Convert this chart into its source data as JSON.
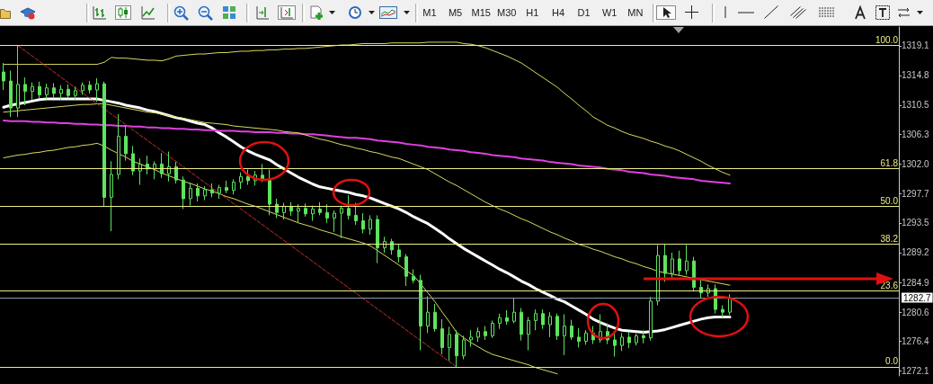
{
  "chart_data": {
    "type": "candlestick",
    "color": "#5ee35e",
    "categories": [
      null,
      null,
      null,
      null,
      null,
      null,
      null,
      null,
      null,
      null,
      null,
      null,
      null,
      null,
      null,
      null,
      null,
      null,
      null,
      null,
      null,
      null,
      null,
      null,
      null,
      null,
      null,
      null,
      null,
      null,
      null,
      null,
      null,
      null,
      null,
      null,
      null,
      null,
      null,
      null,
      null,
      null,
      null,
      null,
      null,
      null,
      null,
      null,
      null,
      null,
      null,
      null,
      null,
      null,
      null,
      null,
      null,
      null,
      null,
      null,
      null,
      null,
      null,
      null,
      null,
      null,
      null,
      null,
      null,
      null,
      null,
      null,
      null,
      null,
      null,
      null,
      null,
      null,
      null,
      null,
      null,
      null,
      null,
      null,
      null,
      null,
      null,
      null,
      null,
      null,
      null,
      null,
      null,
      null,
      null,
      null,
      null,
      null,
      null,
      null,
      null,
      null,
      null,
      null,
      null,
      null,
      null,
      null,
      null,
      null,
      null,
      null,
      null,
      null,
      null,
      null,
      null,
      null,
      null,
      null,
      null,
      null,
      null,
      null,
      null
    ],
    "ohlc": [
      [
        1315.3,
        1316.6,
        1312.7,
        1314.0
      ],
      [
        1314.0,
        1315.5,
        1308.8,
        1310.1
      ],
      [
        1310.1,
        1319.1,
        1308.8,
        1313.5
      ],
      [
        1313.5,
        1314.5,
        1310.5,
        1312.5
      ],
      [
        1312.5,
        1313.8,
        1311.3,
        1313.2
      ],
      [
        1313.2,
        1313.9,
        1311.5,
        1312.0
      ],
      [
        1312.0,
        1313.6,
        1311.4,
        1313.0
      ],
      [
        1313.0,
        1313.7,
        1311.6,
        1312.2
      ],
      [
        1312.2,
        1313.4,
        1311.3,
        1312.8
      ],
      [
        1312.8,
        1313.5,
        1311.5,
        1311.9
      ],
      [
        1311.9,
        1313.2,
        1311.3,
        1312.6
      ],
      [
        1312.6,
        1313.8,
        1312.0,
        1313.4
      ],
      [
        1313.4,
        1314.0,
        1312.2,
        1312.7
      ],
      [
        1312.7,
        1314.4,
        1311.0,
        1313.6
      ],
      [
        1313.6,
        1313.9,
        1295.9,
        1297.2
      ],
      [
        1297.2,
        1302.4,
        1292.3,
        1300.5
      ],
      [
        1300.5,
        1309.2,
        1299.8,
        1306.0
      ],
      [
        1306.0,
        1307.5,
        1302.5,
        1303.5
      ],
      [
        1303.5,
        1304.6,
        1300.4,
        1301.0
      ],
      [
        1301.0,
        1302.8,
        1299.0,
        1302.0
      ],
      [
        1302.0,
        1303.2,
        1300.5,
        1301.3
      ],
      [
        1301.3,
        1302.4,
        1299.8,
        1302.0
      ],
      [
        1302.0,
        1303.6,
        1300.0,
        1300.6
      ],
      [
        1300.6,
        1303.8,
        1299.5,
        1301.6
      ],
      [
        1301.6,
        1302.3,
        1299.2,
        1299.7
      ],
      [
        1299.7,
        1300.2,
        1295.5,
        1297.0
      ],
      [
        1297.0,
        1299.3,
        1296.0,
        1298.5
      ],
      [
        1298.5,
        1299.2,
        1296.6,
        1297.4
      ],
      [
        1297.4,
        1298.8,
        1296.8,
        1298.3
      ],
      [
        1298.3,
        1299.2,
        1297.2,
        1297.8
      ],
      [
        1297.8,
        1299.0,
        1297.0,
        1298.6
      ],
      [
        1298.6,
        1299.6,
        1297.8,
        1298.2
      ],
      [
        1298.2,
        1299.8,
        1297.6,
        1299.4
      ],
      [
        1299.4,
        1300.8,
        1298.4,
        1300.2
      ],
      [
        1300.2,
        1301.2,
        1299.0,
        1299.6
      ],
      [
        1299.6,
        1301.0,
        1298.9,
        1300.4
      ],
      [
        1300.4,
        1302.0,
        1299.4,
        1299.8
      ],
      [
        1299.8,
        1301.2,
        1294.6,
        1296.2
      ],
      [
        1296.2,
        1297.0,
        1294.2,
        1295.0
      ],
      [
        1295.0,
        1296.4,
        1294.0,
        1295.9
      ],
      [
        1295.9,
        1296.5,
        1294.5,
        1295.2
      ],
      [
        1295.2,
        1296.2,
        1293.6,
        1295.6
      ],
      [
        1295.6,
        1296.3,
        1294.4,
        1294.8
      ],
      [
        1294.8,
        1296.0,
        1293.8,
        1295.5
      ],
      [
        1295.5,
        1296.5,
        1294.6,
        1295.0
      ],
      [
        1295.0,
        1296.2,
        1293.5,
        1294.2
      ],
      [
        1294.2,
        1295.3,
        1292.2,
        1294.9
      ],
      [
        1294.9,
        1296.0,
        1291.3,
        1295.6
      ],
      [
        1295.6,
        1297.5,
        1294.0,
        1294.6
      ],
      [
        1294.6,
        1296.4,
        1293.2,
        1293.8
      ],
      [
        1293.8,
        1294.9,
        1292.0,
        1292.6
      ],
      [
        1292.6,
        1294.6,
        1291.8,
        1294.0
      ],
      [
        1294.0,
        1294.6,
        1287.7,
        1289.9
      ],
      [
        1289.9,
        1291.5,
        1289.2,
        1290.8
      ],
      [
        1290.8,
        1291.2,
        1288.9,
        1289.6
      ],
      [
        1289.6,
        1290.5,
        1287.8,
        1288.6
      ],
      [
        1288.6,
        1289.0,
        1284.4,
        1285.8
      ],
      [
        1285.8,
        1286.8,
        1284.8,
        1285.2
      ],
      [
        1285.2,
        1286.0,
        1275.1,
        1278.6
      ],
      [
        1278.6,
        1282.9,
        1277.6,
        1280.6
      ],
      [
        1280.6,
        1281.8,
        1277.8,
        1278.2
      ],
      [
        1278.2,
        1279.6,
        1274.5,
        1275.5
      ],
      [
        1275.5,
        1278.5,
        1273.6,
        1277.4
      ],
      [
        1277.4,
        1278.0,
        1272.7,
        1274.3
      ],
      [
        1274.3,
        1277.2,
        1273.8,
        1276.6
      ],
      [
        1276.6,
        1278.0,
        1275.6,
        1277.0
      ],
      [
        1277.0,
        1278.4,
        1276.3,
        1277.8
      ],
      [
        1277.8,
        1278.6,
        1276.6,
        1277.2
      ],
      [
        1277.2,
        1279.4,
        1276.9,
        1279.0
      ],
      [
        1279.0,
        1280.4,
        1278.2,
        1279.8
      ],
      [
        1279.8,
        1280.9,
        1278.8,
        1279.3
      ],
      [
        1279.3,
        1282.6,
        1279.0,
        1280.6
      ],
      [
        1280.6,
        1281.2,
        1276.5,
        1277.4
      ],
      [
        1277.4,
        1279.9,
        1275.1,
        1279.4
      ],
      [
        1279.4,
        1281.0,
        1278.0,
        1280.4
      ],
      [
        1280.4,
        1281.0,
        1278.2,
        1278.8
      ],
      [
        1278.8,
        1280.6,
        1277.0,
        1280.0
      ],
      [
        1280.0,
        1280.4,
        1276.6,
        1277.2
      ],
      [
        1277.2,
        1280.3,
        1274.4,
        1278.6
      ],
      [
        1278.6,
        1279.5,
        1276.6,
        1277.0
      ],
      [
        1277.0,
        1278.3,
        1275.5,
        1276.4
      ],
      [
        1276.4,
        1278.0,
        1275.9,
        1277.6
      ],
      [
        1277.6,
        1278.6,
        1276.0,
        1276.6
      ],
      [
        1276.6,
        1280.3,
        1276.2,
        1277.8
      ],
      [
        1277.8,
        1279.0,
        1276.0,
        1276.6
      ],
      [
        1276.6,
        1277.6,
        1274.2,
        1275.8
      ],
      [
        1275.8,
        1277.6,
        1275.0,
        1277.0
      ],
      [
        1277.0,
        1277.8,
        1275.4,
        1276.2
      ],
      [
        1276.2,
        1277.5,
        1275.8,
        1277.2
      ],
      [
        1277.2,
        1278.0,
        1276.1,
        1276.9
      ],
      [
        1276.9,
        1282.8,
        1276.5,
        1282.2
      ],
      [
        1282.2,
        1290.3,
        1281.6,
        1288.8
      ],
      [
        1288.8,
        1290.4,
        1285.0,
        1286.2
      ],
      [
        1286.2,
        1289.2,
        1285.6,
        1288.3
      ],
      [
        1288.3,
        1289.5,
        1285.9,
        1286.6
      ],
      [
        1286.6,
        1290.3,
        1286.0,
        1288.0
      ],
      [
        1288.0,
        1288.6,
        1283.6,
        1284.2
      ],
      [
        1284.2,
        1285.3,
        1282.6,
        1283.4
      ],
      [
        1283.4,
        1284.6,
        1282.8,
        1284.0
      ],
      [
        1284.0,
        1284.6,
        1280.4,
        1281.0
      ],
      [
        1281.0,
        1281.6,
        1279.8,
        1280.6
      ],
      [
        1280.6,
        1283.2,
        1280.2,
        1282.7
      ],
      null,
      null,
      null,
      null,
      null,
      null,
      null,
      null,
      null,
      null,
      null,
      null,
      null,
      null,
      null,
      null,
      null,
      null,
      null,
      null,
      null,
      null,
      null
    ],
    "series": [
      {
        "type": "line",
        "color": "#ffffff",
        "values": [
          1310.2,
          1310.5,
          1310.7,
          1310.9,
          1311.1,
          1311.3,
          1311.4,
          1311.4,
          1311.4,
          1311.4,
          1311.4,
          1311.4,
          1311.4,
          1311.4,
          1311.2,
          1311.0,
          1310.8,
          1310.5,
          1310.3,
          1310.1,
          1309.8,
          1309.6,
          1309.3,
          1309.0,
          1308.7,
          1308.5,
          1308.2,
          1307.9,
          1307.7,
          1307.2,
          1306.5,
          1305.9,
          1305.2,
          1304.5,
          1303.9,
          1303.4,
          1303.0,
          1302.6,
          1301.9,
          1301.3,
          1300.7,
          1300.1,
          1299.6,
          1299.1,
          1298.7,
          1298.5,
          1298.3,
          1298.1,
          1297.9,
          1297.6,
          1297.4,
          1297.1,
          1296.7,
          1296.3,
          1295.9,
          1295.5,
          1295.0,
          1294.4,
          1293.9,
          1293.4,
          1292.7,
          1292.0,
          1291.2,
          1290.5,
          1289.8,
          1289.2,
          1288.6,
          1288.0,
          1287.4,
          1286.8,
          1286.3,
          1285.7,
          1285.1,
          1284.6,
          1284.0,
          1283.5,
          1283.0,
          1282.5,
          1282.1,
          1281.5,
          1280.9,
          1280.3,
          1279.6,
          1279.1,
          1278.7,
          1278.3,
          1278.0,
          1277.9,
          1277.8,
          1277.7,
          1277.8,
          1277.9,
          1278.1,
          1278.4,
          1278.7,
          1279.0,
          1279.3,
          1279.6,
          1279.8,
          1279.9,
          1279.9,
          1279.9,
          null,
          null,
          null,
          null,
          null,
          null,
          null,
          null,
          null,
          null,
          null,
          null,
          null,
          null,
          null,
          null,
          null,
          null,
          null,
          null,
          null,
          null,
          null
        ]
      },
      {
        "type": "line",
        "color": "#e040e0",
        "values": [
          1308.3,
          1308.2,
          1308.2,
          1308.2,
          1308.1,
          1308.1,
          1308.0,
          1308.0,
          1307.9,
          1307.9,
          1307.8,
          1307.8,
          1307.7,
          1307.7,
          1307.6,
          1307.6,
          1307.5,
          1307.5,
          1307.4,
          1307.4,
          1307.3,
          1307.3,
          1307.2,
          1307.2,
          1307.1,
          1307.1,
          1307.0,
          1307.0,
          1306.9,
          1306.9,
          1306.8,
          1306.8,
          1306.8,
          1306.7,
          1306.7,
          1306.6,
          1306.6,
          1306.6,
          1306.5,
          1306.5,
          1306.4,
          1306.4,
          1306.3,
          1306.3,
          1306.2,
          1306.1,
          1306.0,
          1305.9,
          1305.8,
          1305.8,
          1305.7,
          1305.6,
          1305.4,
          1305.3,
          1305.2,
          1305.1,
          1304.9,
          1304.8,
          1304.7,
          1304.5,
          1304.4,
          1304.3,
          1304.1,
          1304.0,
          1303.9,
          1303.7,
          1303.6,
          1303.5,
          1303.3,
          1303.2,
          1303.1,
          1303.0,
          1302.8,
          1302.7,
          1302.6,
          1302.5,
          1302.3,
          1302.2,
          1302.1,
          1302.0,
          1301.8,
          1301.7,
          1301.6,
          1301.5,
          1301.3,
          1301.2,
          1301.1,
          1300.9,
          1300.8,
          1300.7,
          1300.5,
          1300.4,
          1300.3,
          1300.1,
          1300.0,
          1299.9,
          1299.8,
          1299.6,
          1299.5,
          1299.4,
          1299.3,
          1299.2,
          null,
          null,
          null,
          null,
          null,
          null,
          null,
          null,
          null,
          null,
          null,
          null,
          null,
          null,
          null,
          null,
          null,
          null,
          null,
          null,
          null,
          null,
          null
        ]
      },
      {
        "type": "line",
        "color": "#d8d860",
        "values": [
          1316.4,
          1316.4,
          1316.4,
          1316.4,
          1316.4,
          1316.4,
          1316.4,
          1316.4,
          1316.4,
          1316.4,
          1316.4,
          1316.4,
          1316.4,
          1316.4,
          1316.7,
          1317.4,
          1317.3,
          1317.3,
          1317.2,
          1317.1,
          1317.0,
          1317.0,
          1316.9,
          1317.2,
          1317.6,
          1317.7,
          1317.8,
          1317.9,
          1317.9,
          1318.0,
          1318.1,
          1318.1,
          1318.2,
          1318.3,
          1318.3,
          1318.4,
          1318.4,
          1318.5,
          1318.5,
          1318.6,
          1318.6,
          1318.7,
          1318.7,
          1318.8,
          1318.9,
          1319.0,
          1319.1,
          1319.2,
          1319.2,
          1319.3,
          1319.4,
          1319.4,
          1319.4,
          1319.4,
          1319.5,
          1319.5,
          1319.5,
          1319.5,
          1319.5,
          1319.6,
          1319.6,
          1319.6,
          1319.6,
          1319.6,
          1319.4,
          1319.3,
          1319.1,
          1318.8,
          1318.4,
          1318.0,
          1317.6,
          1317.1,
          1316.6,
          1315.9,
          1315.2,
          1314.5,
          1313.8,
          1313.1,
          1312.2,
          1311.4,
          1310.5,
          1309.7,
          1308.8,
          1308.2,
          1307.6,
          1307.2,
          1306.7,
          1306.3,
          1306.0,
          1305.7,
          1305.3,
          1305.0,
          1304.6,
          1304.3,
          1303.9,
          1303.4,
          1302.9,
          1302.4,
          1301.8,
          1301.3,
          1300.8,
          1300.4,
          null,
          null,
          null,
          null,
          null,
          null,
          null,
          null,
          null,
          null,
          null,
          null,
          null,
          null,
          null,
          null,
          null,
          null,
          null,
          null,
          null,
          null,
          null
        ]
      },
      {
        "type": "line",
        "color": "#d8d860",
        "values": [
          1309.5,
          1309.6,
          1309.7,
          1309.8,
          1309.9,
          1310.0,
          1310.1,
          1310.2,
          1310.3,
          1310.4,
          1310.5,
          1310.6,
          1310.6,
          1310.7,
          1310.7,
          1310.5,
          1310.3,
          1310.1,
          1309.9,
          1309.7,
          1309.5,
          1309.4,
          1309.2,
          1309.0,
          1308.8,
          1308.6,
          1308.4,
          1308.2,
          1308.0,
          1307.9,
          1307.8,
          1307.7,
          1307.5,
          1307.4,
          1307.3,
          1307.2,
          1307.1,
          1307.0,
          1306.9,
          1306.7,
          1306.6,
          1306.5,
          1306.2,
          1305.9,
          1305.6,
          1305.4,
          1305.1,
          1304.8,
          1304.6,
          1304.3,
          1304.1,
          1303.8,
          1303.6,
          1303.3,
          1303.0,
          1302.8,
          1302.4,
          1302.0,
          1301.6,
          1301.2,
          1300.6,
          1300.0,
          1299.4,
          1298.9,
          1298.3,
          1297.7,
          1297.1,
          1296.5,
          1296.0,
          1295.5,
          1295.1,
          1294.6,
          1294.1,
          1293.7,
          1293.2,
          1292.7,
          1292.2,
          1291.8,
          1291.3,
          1290.9,
          1290.4,
          1290.1,
          1289.7,
          1289.4,
          1289.0,
          1288.6,
          1288.3,
          1287.9,
          1287.6,
          1287.2,
          1286.9,
          1286.5,
          1286.3,
          1286.1,
          1285.9,
          1285.7,
          1285.5,
          1285.3,
          1285.1,
          1284.9,
          1284.7,
          1284.5,
          null,
          null,
          null,
          null,
          null,
          null,
          null,
          null,
          null,
          null,
          null,
          null,
          null,
          null,
          null,
          null,
          null,
          null,
          null,
          null,
          null,
          null,
          null
        ]
      },
      {
        "type": "line",
        "color": "#d8d860",
        "values": [
          1302.9,
          1303.1,
          1303.3,
          1303.4,
          1303.6,
          1303.7,
          1303.9,
          1304.0,
          1304.2,
          1304.4,
          1304.5,
          1304.7,
          1304.8,
          1305.0,
          1304.6,
          1304.0,
          1303.5,
          1303.0,
          1302.4,
          1302.0,
          1301.6,
          1301.2,
          1300.7,
          1300.3,
          1299.9,
          1299.5,
          1299.2,
          1298.8,
          1298.4,
          1298.1,
          1297.7,
          1297.3,
          1297.0,
          1296.6,
          1296.2,
          1295.9,
          1295.5,
          1295.1,
          1294.7,
          1294.3,
          1293.9,
          1293.5,
          1293.2,
          1292.9,
          1292.5,
          1292.2,
          1291.9,
          1291.5,
          1291.2,
          1290.9,
          1290.6,
          1290.2,
          1289.5,
          1288.8,
          1288.1,
          1287.4,
          1286.6,
          1285.9,
          1284.7,
          1283.4,
          1282.1,
          1280.6,
          1279.2,
          1277.7,
          1276.9,
          1276.2,
          1275.6,
          1275.0,
          1274.5,
          1274.2,
          1273.9,
          1273.6,
          1273.3,
          1273.0,
          1272.6,
          1272.3,
          1272.0,
          1271.7,
          null,
          null,
          null,
          null,
          null,
          null,
          null,
          null,
          null,
          null,
          null,
          null,
          null,
          null,
          null,
          null,
          null,
          null,
          null,
          null,
          null,
          null,
          null,
          null,
          null,
          null,
          null,
          null,
          null,
          null,
          null,
          null,
          null,
          null,
          null,
          null,
          null,
          null,
          null,
          null,
          null,
          null,
          null,
          null,
          null,
          null,
          null
        ]
      },
      {
        "type": "line",
        "color": "#c83030",
        "line_style": "dashed",
        "values": [
          null,
          null,
          1319.1,
          null,
          null,
          null,
          null,
          null,
          null,
          null,
          null,
          null,
          null,
          null,
          null,
          null,
          null,
          null,
          null,
          null,
          null,
          null,
          null,
          null,
          null,
          null,
          null,
          null,
          null,
          null,
          null,
          null,
          null,
          null,
          null,
          null,
          null,
          null,
          null,
          null,
          null,
          null,
          null,
          null,
          null,
          null,
          null,
          null,
          null,
          null,
          null,
          null,
          null,
          null,
          null,
          null,
          null,
          null,
          null,
          null,
          null,
          null,
          null,
          1272.7,
          null,
          null,
          null,
          null,
          null,
          null,
          null,
          null,
          null,
          null,
          null,
          null,
          null,
          null,
          null,
          null,
          null,
          null,
          null,
          null,
          null,
          null,
          null,
          null,
          null,
          null,
          null,
          null,
          null,
          null,
          null,
          null,
          null,
          null,
          null,
          null,
          null,
          null,
          null,
          null,
          null,
          null,
          null,
          null,
          null,
          null,
          null,
          null,
          null,
          null,
          null,
          null,
          null,
          null,
          null,
          null,
          null,
          null,
          null,
          null,
          null
        ]
      }
    ],
    "ylim": [
      1271.4,
      1321.8
    ],
    "yticks": [
      1272.1,
      1276.4,
      1280.6,
      1284.9,
      1289.2,
      1293.5,
      1297.7,
      {
        "value": 1302,
        "label": "1302.0"
      },
      1306.3,
      1310.5,
      1314.8,
      1319.1
    ],
    "y2lim": [
      -2.8,
      105.8
    ],
    "ref_lines": [
      {
        "axis": "y2",
        "value": 100,
        "label": "100.0",
        "color": "#eeee88"
      },
      {
        "axis": "y2",
        "value": 61.8,
        "label": "61.8",
        "color": "#eeee88"
      },
      {
        "axis": "y2",
        "value": 50,
        "label": "50.0",
        "color": "#eeee88"
      },
      {
        "axis": "y2",
        "value": 38.2,
        "label": "38.2",
        "color": "#eeee88"
      },
      {
        "axis": "y2",
        "value": 23.6,
        "label": "23.6",
        "color": "#eeee88"
      },
      {
        "axis": "y2",
        "value": 0,
        "label": "0.0",
        "color": "#eeee88"
      },
      {
        "axis": "y",
        "value": 1282.7,
        "label": "1282.7",
        "color": "#8c98a8"
      }
    ],
    "annotations": [
      "M1",
      "M5",
      "M15",
      "M30",
      "H1",
      "H4",
      "D1",
      "W1",
      "MN"
    ],
    "marker": "none",
    "grid": false,
    "tick_labels": "y"
  }
}
